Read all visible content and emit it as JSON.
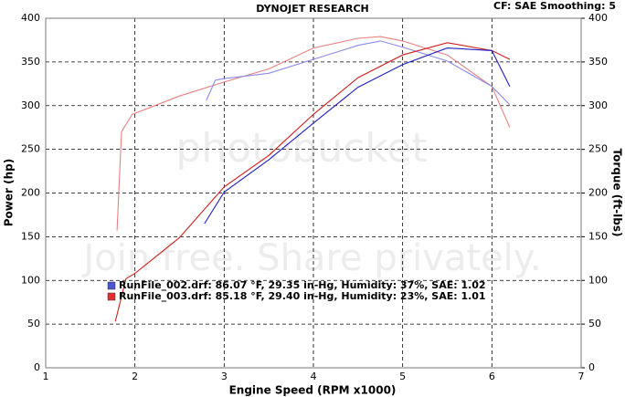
{
  "chart_data": {
    "type": "line",
    "title": "DYNOJET RESEARCH",
    "subtitle": "CF: SAE  Smoothing: 5",
    "x_label": "Engine Speed (RPM x1000)",
    "y_label": "Power (hp)",
    "y2_label": "Torque (ft-lbs)",
    "watermark": [
      "photobucket",
      "Join free. Share privately."
    ],
    "xlim": [
      1,
      7
    ],
    "xticks": [
      1,
      2,
      3,
      4,
      5,
      6,
      7
    ],
    "ylim": [
      0,
      400
    ],
    "yticks": [
      0,
      50,
      100,
      150,
      200,
      250,
      300,
      350,
      400
    ],
    "y2lim": [
      0,
      400
    ],
    "y2ticks": [
      0,
      50,
      100,
      150,
      200,
      250,
      300,
      350,
      400
    ],
    "grid": true,
    "legend": [
      {
        "text": "RunFile_002.drf: 86.07 °F, 29.35 in-Hg, Humidity: 37%, SAE: 1.02",
        "color": "#4a55d6"
      },
      {
        "text": "RunFile_003.drf: 85.18 °F, 29.40 in-Hg, Humidity: 23%, SAE: 1.01",
        "color": "#e03030"
      }
    ],
    "series": [
      {
        "color": "#e88080",
        "axis": "y2",
        "x": [
          1.8,
          1.85,
          1.97,
          2.5,
          3.0,
          3.5,
          4.0,
          4.5,
          4.75,
          5.0,
          5.5,
          6.0,
          6.2
        ],
        "values": [
          157,
          270,
          290,
          311,
          327,
          342,
          366,
          377,
          379,
          374,
          358,
          322,
          275
        ]
      },
      {
        "color": "#8a8ae8",
        "axis": "y2",
        "x": [
          2.8,
          2.9,
          3.0,
          3.5,
          4.0,
          4.5,
          4.75,
          5.0,
          5.5,
          6.0,
          6.2
        ],
        "values": [
          306,
          329,
          331,
          337,
          353,
          369,
          374,
          367,
          351,
          322,
          301
        ]
      },
      {
        "color": "#d02020",
        "x": [
          1.78,
          1.9,
          2.0,
          2.5,
          3.0,
          3.5,
          4.0,
          4.5,
          5.0,
          5.5,
          6.0,
          6.2
        ],
        "values": [
          53,
          102,
          108,
          149,
          207,
          243,
          290,
          332,
          358,
          372,
          363,
          353
        ]
      },
      {
        "color": "#2020c0",
        "x": [
          2.78,
          3.0,
          3.5,
          4.0,
          4.5,
          5.0,
          5.5,
          6.0,
          6.2
        ],
        "values": [
          165,
          201,
          238,
          280,
          321,
          347,
          366,
          363,
          322
        ]
      }
    ]
  }
}
